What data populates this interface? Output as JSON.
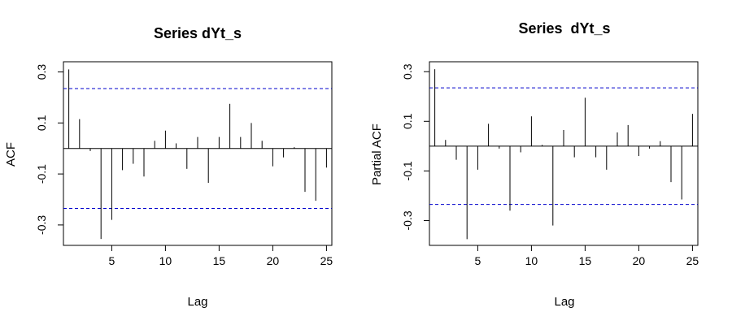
{
  "chart_data": [
    {
      "type": "bar",
      "subtype": "correlogram",
      "title": "Series dYt_s",
      "xlabel": "Lag",
      "ylabel": "ACF",
      "xlim": [
        0.5,
        25.5
      ],
      "ylim": [
        -0.38,
        0.34
      ],
      "xticks": [
        5,
        10,
        15,
        20,
        25
      ],
      "yticks": [
        -0.3,
        -0.1,
        0.1,
        0.3
      ],
      "ytick_labels": [
        "-0.3",
        "-0.1",
        "0.1",
        "0.3"
      ],
      "confidence_bound": 0.235,
      "confidence_color": "#0000cc",
      "grid": false,
      "x": [
        1,
        2,
        3,
        4,
        5,
        6,
        7,
        8,
        9,
        10,
        11,
        12,
        13,
        14,
        15,
        16,
        17,
        18,
        19,
        20,
        21,
        22,
        23,
        24,
        25
      ],
      "values": [
        0.31,
        0.115,
        -0.01,
        -0.355,
        -0.28,
        -0.085,
        -0.06,
        -0.11,
        0.03,
        0.07,
        0.02,
        -0.08,
        0.045,
        -0.135,
        0.045,
        0.175,
        0.045,
        0.1,
        0.03,
        -0.07,
        -0.035,
        0.005,
        -0.17,
        -0.205,
        -0.075
      ]
    },
    {
      "type": "bar",
      "subtype": "correlogram",
      "title": "Series  dYt_s",
      "xlabel": "Lag",
      "ylabel": "Partial ACF",
      "xlim": [
        0.5,
        25.5
      ],
      "ylim": [
        -0.4,
        0.34
      ],
      "xticks": [
        5,
        10,
        15,
        20,
        25
      ],
      "yticks": [
        -0.3,
        -0.1,
        0.1,
        0.3
      ],
      "ytick_labels": [
        "-0.3",
        "-0.1",
        "0.1",
        "0.3"
      ],
      "confidence_bound": 0.235,
      "confidence_color": "#0000cc",
      "grid": false,
      "x": [
        1,
        2,
        3,
        4,
        5,
        6,
        7,
        8,
        9,
        10,
        11,
        12,
        13,
        14,
        15,
        16,
        17,
        18,
        19,
        20,
        21,
        22,
        23,
        24,
        25
      ],
      "values": [
        0.31,
        0.025,
        -0.055,
        -0.375,
        -0.095,
        0.09,
        -0.01,
        -0.26,
        -0.025,
        0.12,
        0.005,
        -0.32,
        0.065,
        -0.045,
        0.195,
        -0.045,
        -0.095,
        0.055,
        0.085,
        -0.04,
        -0.01,
        0.02,
        -0.145,
        -0.215,
        0.13
      ]
    }
  ]
}
